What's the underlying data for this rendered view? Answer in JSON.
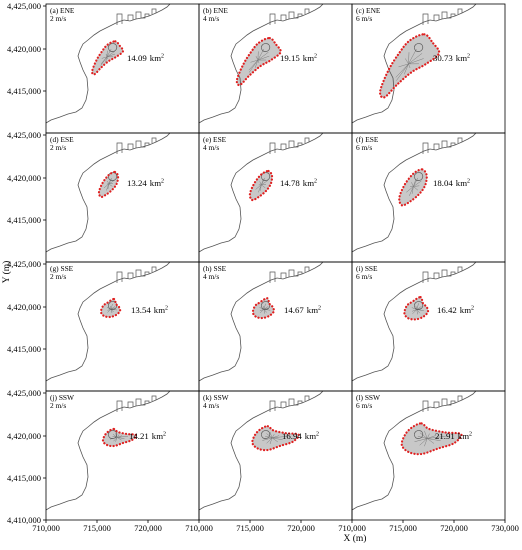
{
  "figure": {
    "x_axis_title": "X (m)",
    "y_axis_title": "Y (m)",
    "x_tick_labels": [
      "710,000",
      "715,000",
      "720,000",
      "725,000",
      "730,000"
    ],
    "y_tick_labels": [
      "4,410,000",
      "4,415,000",
      "4,420,000",
      "4,425,000"
    ],
    "area_unit": "km",
    "area_unit_sup": "2",
    "colors": {
      "plume_boundary": "#e02020",
      "plume_fill": "#9a9a9a",
      "coastline": "#555555"
    }
  },
  "panels": [
    {
      "label": "(a) ENE",
      "speed": "2 m/s",
      "area": "14.09",
      "wind": "ENE",
      "scale": 0.55
    },
    {
      "label": "(b) ENE",
      "speed": "4 m/s",
      "area": "19.15",
      "wind": "ENE",
      "scale": 0.78
    },
    {
      "label": "(c) ENE",
      "speed": "6 m/s",
      "area": "30.73",
      "wind": "ENE",
      "scale": 1.05
    },
    {
      "label": "(d) ESE",
      "speed": "2 m/s",
      "area": "13.24",
      "wind": "ESE",
      "scale": 0.5
    },
    {
      "label": "(e) ESE",
      "speed": "4 m/s",
      "area": "14.78",
      "wind": "ESE",
      "scale": 0.58
    },
    {
      "label": "(f) ESE",
      "speed": "6 m/s",
      "area": "18.04",
      "wind": "ESE",
      "scale": 0.72
    },
    {
      "label": "(g) SSE",
      "speed": "2 m/s",
      "area": "13.54",
      "wind": "SSE",
      "scale": 0.5
    },
    {
      "label": "(h) SSE",
      "speed": "4 m/s",
      "area": "14.67",
      "wind": "SSE",
      "scale": 0.55
    },
    {
      "label": "(i) SSE",
      "speed": "6 m/s",
      "area": "16.42",
      "wind": "SSE",
      "scale": 0.62
    },
    {
      "label": "(j) SSW",
      "speed": "2 m/s",
      "area": "14.21",
      "wind": "SSW",
      "scale": 0.5
    },
    {
      "label": "(k) SSW",
      "speed": "4 m/s",
      "area": "16.94",
      "wind": "SSW",
      "scale": 0.7
    },
    {
      "label": "(l) SSW",
      "speed": "6 m/s",
      "area": "21.91",
      "wind": "SSW",
      "scale": 0.9
    }
  ]
}
